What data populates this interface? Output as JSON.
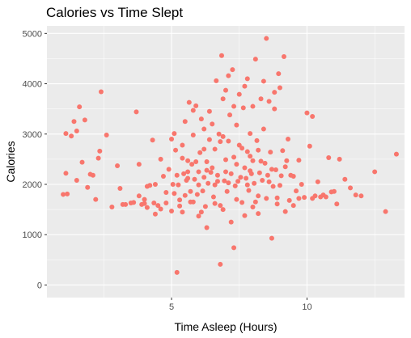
{
  "chart_data": {
    "type": "scatter",
    "title": "Calories vs Time Slept",
    "xlabel": "Time Asleep (Hours)",
    "ylabel": "Calories",
    "xlim": [
      0.4,
      13.6
    ],
    "ylim": [
      -250,
      5150
    ],
    "x_ticks": [
      5,
      10
    ],
    "y_ticks": [
      0,
      1000,
      2000,
      3000,
      4000,
      5000
    ],
    "grid": true,
    "legend": "none",
    "point_color": "#F8766D",
    "panel_color": "#EBEBEB",
    "grid_color": "#FFFFFF",
    "points": [
      [
        1.0,
        1800
      ],
      [
        1.1,
        2220
      ],
      [
        1.15,
        1810
      ],
      [
        1.1,
        3010
      ],
      [
        1.3,
        2960
      ],
      [
        1.4,
        3250
      ],
      [
        1.5,
        3060
      ],
      [
        1.5,
        2080
      ],
      [
        1.6,
        3540
      ],
      [
        1.7,
        2440
      ],
      [
        1.8,
        3280
      ],
      [
        1.9,
        1940
      ],
      [
        2.0,
        2200
      ],
      [
        2.1,
        2180
      ],
      [
        2.2,
        1700
      ],
      [
        2.3,
        2520
      ],
      [
        2.35,
        2660
      ],
      [
        2.4,
        3840
      ],
      [
        2.6,
        2980
      ],
      [
        2.8,
        1550
      ],
      [
        3.0,
        2370
      ],
      [
        3.1,
        1920
      ],
      [
        3.5,
        1630
      ],
      [
        3.6,
        1640
      ],
      [
        3.7,
        3440
      ],
      [
        3.8,
        1770
      ],
      [
        3.8,
        2400
      ],
      [
        3.9,
        1600
      ],
      [
        4.0,
        1700
      ],
      [
        4.1,
        1960
      ],
      [
        4.1,
        1540
      ],
      [
        4.2,
        1980
      ],
      [
        4.3,
        2880
      ],
      [
        4.35,
        1630
      ],
      [
        4.4,
        1410
      ],
      [
        4.5,
        1580
      ],
      [
        4.6,
        1510
      ],
      [
        4.7,
        2160
      ],
      [
        4.8,
        1840
      ],
      [
        4.8,
        1630
      ],
      [
        4.9,
        2300
      ],
      [
        5.0,
        2900
      ],
      [
        5.0,
        1470
      ],
      [
        5.05,
        2000
      ],
      [
        5.1,
        1820
      ],
      [
        5.1,
        3010
      ],
      [
        5.15,
        2680
      ],
      [
        5.2,
        2180
      ],
      [
        5.25,
        1990
      ],
      [
        5.3,
        1690
      ],
      [
        5.3,
        1570
      ],
      [
        5.4,
        2780
      ],
      [
        5.4,
        2520
      ],
      [
        5.45,
        2210
      ],
      [
        5.5,
        3250
      ],
      [
        5.5,
        1780
      ],
      [
        5.55,
        2080
      ],
      [
        5.6,
        2470
      ],
      [
        5.6,
        2120
      ],
      [
        5.65,
        3630
      ],
      [
        5.7,
        1860
      ],
      [
        5.7,
        1650
      ],
      [
        5.75,
        2400
      ],
      [
        5.8,
        3470
      ],
      [
        5.8,
        2980
      ],
      [
        5.85,
        2100
      ],
      [
        5.9,
        3560
      ],
      [
        5.95,
        1800
      ],
      [
        6.0,
        2250
      ],
      [
        6.0,
        1370
      ],
      [
        6.05,
        2630
      ],
      [
        6.1,
        3300
      ],
      [
        6.15,
        1870
      ],
      [
        6.2,
        2140
      ],
      [
        6.2,
        3100
      ],
      [
        6.25,
        1560
      ],
      [
        6.3,
        1140
      ],
      [
        6.3,
        2450
      ],
      [
        6.35,
        2020
      ],
      [
        6.4,
        2890
      ],
      [
        6.45,
        2240
      ],
      [
        6.5,
        3200
      ],
      [
        6.55,
        1750
      ],
      [
        6.6,
        1990
      ],
      [
        6.6,
        2700
      ],
      [
        6.65,
        4060
      ],
      [
        6.7,
        2180
      ],
      [
        6.75,
        3000
      ],
      [
        6.8,
        1580
      ],
      [
        6.85,
        4560
      ],
      [
        6.9,
        2950
      ],
      [
        6.95,
        2070
      ],
      [
        7.0,
        3870
      ],
      [
        7.0,
        2250
      ],
      [
        7.05,
        1860
      ],
      [
        7.1,
        2860
      ],
      [
        7.1,
        4160
      ],
      [
        7.15,
        3380
      ],
      [
        7.2,
        2210
      ],
      [
        7.25,
        4280
      ],
      [
        7.3,
        2540
      ],
      [
        7.35,
        1970
      ],
      [
        7.4,
        3180
      ],
      [
        7.45,
        2060
      ],
      [
        7.5,
        3790
      ],
      [
        7.5,
        2780
      ],
      [
        7.55,
        2140
      ],
      [
        7.6,
        1640
      ],
      [
        7.65,
        3520
      ],
      [
        7.7,
        2330
      ],
      [
        7.75,
        2120
      ],
      [
        7.8,
        4100
      ],
      [
        7.8,
        2650
      ],
      [
        7.85,
        1880
      ],
      [
        7.9,
        3010
      ],
      [
        7.95,
        2210
      ],
      [
        8.0,
        3550
      ],
      [
        8.0,
        2470
      ],
      [
        8.05,
        2020
      ],
      [
        8.1,
        4490
      ],
      [
        8.15,
        2870
      ],
      [
        8.2,
        1770
      ],
      [
        8.25,
        2230
      ],
      [
        8.3,
        3700
      ],
      [
        8.35,
        2080
      ],
      [
        8.4,
        3100
      ],
      [
        8.45,
        2420
      ],
      [
        8.5,
        4900
      ],
      [
        8.5,
        1720
      ],
      [
        8.55,
        2180
      ],
      [
        8.6,
        3650
      ],
      [
        8.65,
        2640
      ],
      [
        8.7,
        930
      ],
      [
        8.75,
        1960
      ],
      [
        8.8,
        3830
      ],
      [
        8.85,
        2290
      ],
      [
        8.9,
        1610
      ],
      [
        8.95,
        4200
      ],
      [
        9.0,
        3920
      ],
      [
        9.05,
        2170
      ],
      [
        9.1,
        2670
      ],
      [
        9.15,
        4540
      ],
      [
        9.2,
        1460
      ],
      [
        9.25,
        2470
      ],
      [
        9.3,
        2900
      ],
      [
        9.35,
        1680
      ],
      [
        9.4,
        2180
      ],
      [
        9.5,
        2160
      ],
      [
        9.6,
        1870
      ],
      [
        9.7,
        2480
      ],
      [
        9.8,
        2000
      ],
      [
        9.9,
        1740
      ],
      [
        10.0,
        3420
      ],
      [
        10.1,
        2760
      ],
      [
        10.2,
        3350
      ],
      [
        10.3,
        1770
      ],
      [
        10.4,
        2050
      ],
      [
        10.5,
        1750
      ],
      [
        10.6,
        1790
      ],
      [
        10.7,
        1750
      ],
      [
        10.8,
        2530
      ],
      [
        10.9,
        1850
      ],
      [
        11.0,
        1860
      ],
      [
        11.1,
        1610
      ],
      [
        11.2,
        2500
      ],
      [
        11.4,
        2100
      ],
      [
        11.6,
        1930
      ],
      [
        11.8,
        1790
      ],
      [
        12.0,
        1770
      ],
      [
        12.5,
        2250
      ],
      [
        12.9,
        1460
      ],
      [
        13.3,
        2600
      ],
      [
        5.2,
        250
      ],
      [
        6.8,
        410
      ],
      [
        7.3,
        740
      ],
      [
        7.2,
        1250
      ],
      [
        7.7,
        1380
      ],
      [
        8.2,
        1420
      ],
      [
        5.9,
        2450
      ],
      [
        6.5,
        2330
      ],
      [
        7.0,
        2490
      ],
      [
        7.4,
        2400
      ],
      [
        7.9,
        2560
      ],
      [
        8.3,
        2460
      ],
      [
        6.2,
        2700
      ],
      [
        6.8,
        2850
      ],
      [
        7.6,
        2720
      ],
      [
        8.2,
        2680
      ],
      [
        6.4,
        3450
      ],
      [
        7.3,
        3550
      ],
      [
        8.8,
        3500
      ],
      [
        6.9,
        3700
      ],
      [
        7.7,
        3950
      ],
      [
        8.4,
        4050
      ],
      [
        6.0,
        1990
      ],
      [
        6.7,
        2060
      ],
      [
        7.1,
        2030
      ],
      [
        7.8,
        1990
      ],
      [
        8.6,
        2050
      ],
      [
        9.0,
        1980
      ],
      [
        5.6,
        2250
      ],
      [
        6.3,
        2280
      ],
      [
        7.9,
        2270
      ],
      [
        8.7,
        2300
      ],
      [
        9.2,
        2350
      ],
      [
        5.8,
        1650
      ],
      [
        6.6,
        1620
      ],
      [
        7.4,
        1700
      ],
      [
        8.1,
        1650
      ],
      [
        8.9,
        1730
      ],
      [
        9.5,
        1580
      ],
      [
        4.4,
        2000
      ],
      [
        3.3,
        1600
      ],
      [
        4.0,
        1620
      ],
      [
        5.4,
        1450
      ],
      [
        6.1,
        1450
      ],
      [
        6.9,
        1500
      ],
      [
        8.0,
        1550
      ],
      [
        9.7,
        1720
      ],
      [
        10.2,
        1720
      ],
      [
        3.2,
        1600
      ],
      [
        4.6,
        2500
      ]
    ]
  }
}
